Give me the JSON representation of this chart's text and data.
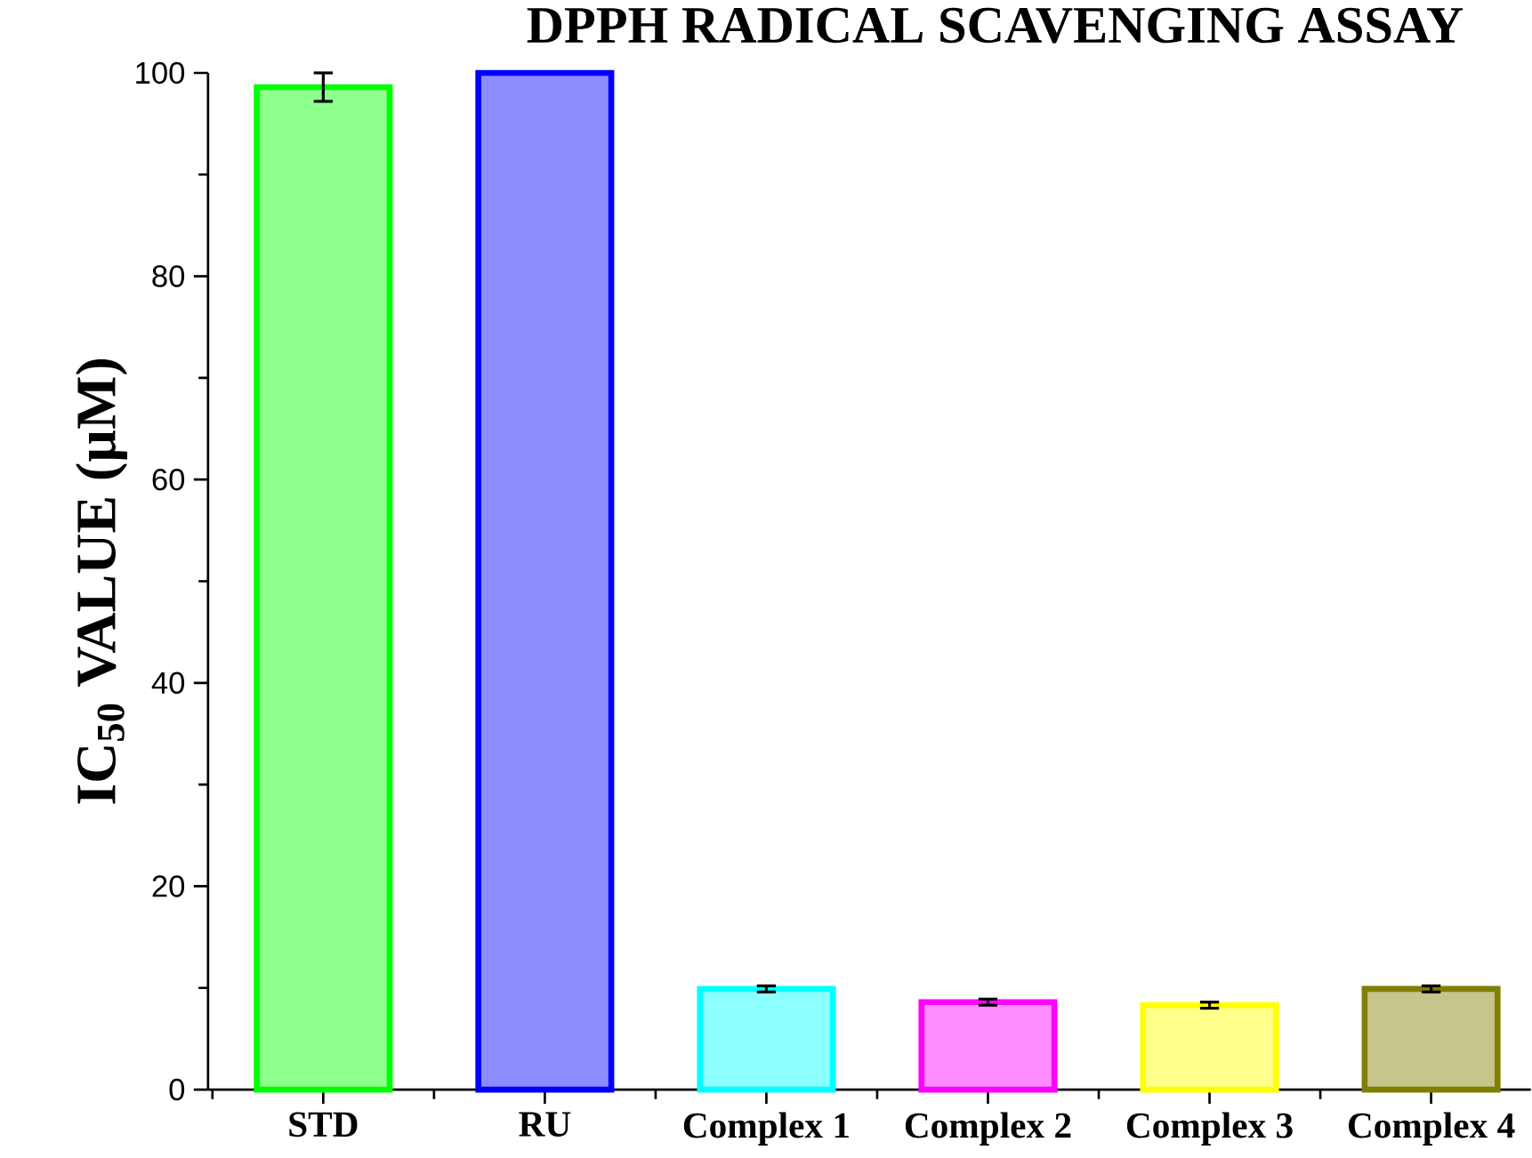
{
  "chart_data": {
    "type": "bar",
    "title": "DPPH RADICAL SCAVENGING ASSAY",
    "ylabel": "IC$_{50}$ VALUE (µM)",
    "categories": [
      "STD",
      "RU",
      "Complex 1",
      "Complex 2",
      "Complex 3",
      "Complex 4"
    ],
    "values": [
      98.6,
      100,
      9.9,
      8.6,
      8.3,
      9.9
    ],
    "errors": [
      1.4,
      null,
      0.3,
      0.3,
      0.3,
      0.3
    ],
    "colors": [
      "#00ff00",
      "#0000ff",
      "#00ffff",
      "#ff00ff",
      "#ffff00",
      "#808000"
    ],
    "ylim": [
      0,
      100
    ],
    "yticks": [
      0,
      20,
      40,
      60,
      80,
      100
    ],
    "grid": false
  }
}
